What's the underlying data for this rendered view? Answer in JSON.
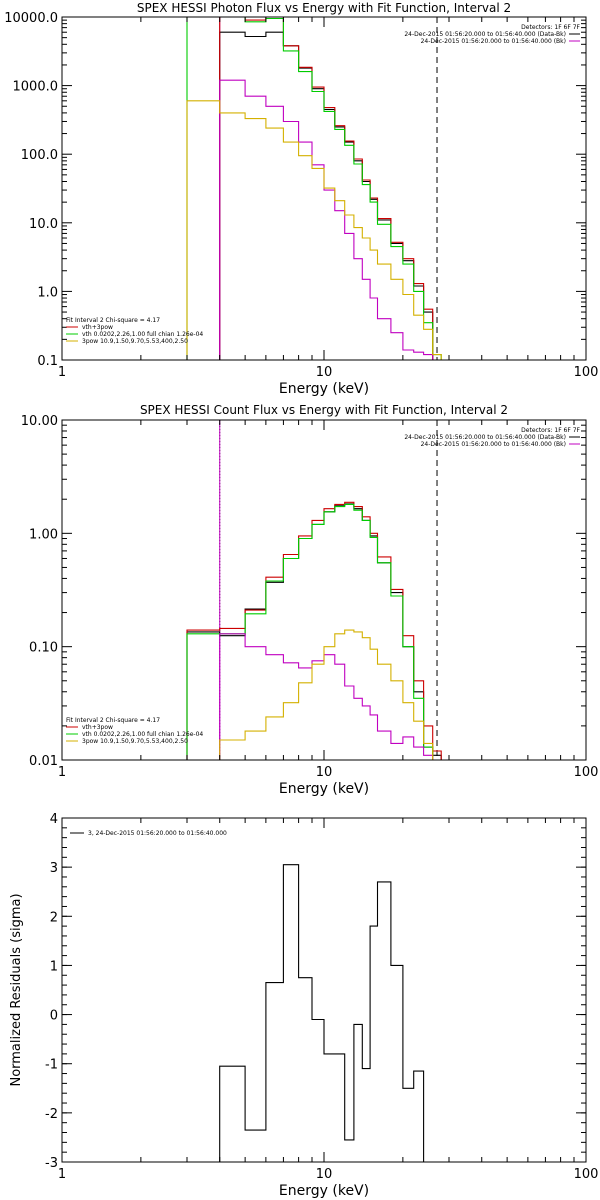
{
  "charts": [
    {
      "type": "line",
      "title": "SPEX HESSI Photon Flux vs Energy with Fit Function, Interval 2",
      "xlabel": "Energy (keV)",
      "ylabel": "",
      "xscale": "log",
      "yscale": "log",
      "xlim": [
        1,
        100
      ],
      "ylim": [
        0.1,
        10000
      ],
      "x_ticks": [
        "1",
        "10",
        "100"
      ],
      "y_ticks": [
        "0.1",
        "1.0",
        "10.0",
        "100.0",
        "1000.0",
        "10000.0"
      ],
      "vlines": [
        {
          "x": 4.0,
          "style": "solid",
          "color": "#c000c0"
        },
        {
          "x": 27.0,
          "style": "dashed",
          "color": "#000000"
        }
      ],
      "legend_top_right": [
        "Detectors: 1F 6F 7F",
        "24-Dec-2015 01:56:20.000 to 01:56:40.000 (Data-Bk)",
        "24-Dec-2015 01:56:20.000 to 01:56:40.000 (Bk)"
      ],
      "legend_bottom_left": [
        "Fit Interval 2   Chi-square = 4.17",
        "vth+3pow",
        "vth 0.0202,2.26,1.00  full chian 1.26e-04",
        "3pow 10.9,1.50,9.70,5.53,400,2.50"
      ],
      "legend_colors": [
        "#cc0000",
        "#00cc00",
        "#d4b000"
      ],
      "series": [
        {
          "name": "Data-Bk",
          "color": "#000000",
          "edges": [
            4.0,
            5.0,
            6.0,
            7.0,
            8.0,
            9.0,
            10.0,
            11.0,
            12.0,
            13.0,
            14.0,
            15.0,
            16.0,
            18.0,
            20.0,
            22.0,
            24.0,
            26.0
          ],
          "values": [
            6000,
            5200,
            6000,
            3800,
            1800,
            900,
            450,
            250,
            150,
            80,
            40,
            22,
            11,
            5,
            2.8,
            1.2,
            0.5
          ]
        },
        {
          "name": "vth+3pow",
          "color": "#cc0000",
          "edges": [
            4.0,
            5.0,
            6.0,
            7.0,
            8.0,
            9.0,
            10.0,
            11.0,
            12.0,
            13.0,
            14.0,
            15.0,
            16.0,
            18.0,
            20.0,
            22.0,
            24.0,
            26.0
          ],
          "values": [
            10000,
            9000,
            10000,
            3800,
            1850,
            950,
            480,
            260,
            155,
            85,
            42,
            23,
            11.5,
            5.2,
            3.0,
            1.3,
            0.55
          ]
        },
        {
          "name": "vth",
          "color": "#00cc00",
          "edges": [
            3.0,
            4.0,
            5.0,
            6.0,
            7.0,
            8.0,
            9.0,
            10.0,
            11.0,
            12.0,
            13.0,
            14.0,
            15.0,
            16.0,
            18.0,
            20.0,
            22.0,
            24.0,
            26.0,
            28.0
          ],
          "values": [
            10000,
            10000,
            8500,
            9500,
            3200,
            1600,
            820,
            420,
            230,
            135,
            72,
            36,
            20,
            9.5,
            4.5,
            2.5,
            1.0,
            0.35,
            0.12
          ]
        },
        {
          "name": "Bk",
          "color": "#c000c0",
          "edges": [
            4.0,
            5.0,
            6.0,
            7.0,
            8.0,
            9.0,
            10.0,
            11.0,
            12.0,
            13.0,
            14.0,
            15.0,
            16.0,
            18.0,
            20.0,
            22.0,
            24.0,
            26.0
          ],
          "values": [
            1200,
            700,
            500,
            300,
            150,
            70,
            30,
            15,
            7,
            3,
            1.5,
            0.8,
            0.4,
            0.25,
            0.14,
            0.13,
            0.12
          ]
        },
        {
          "name": "3pow",
          "color": "#d4b000",
          "edges": [
            3.0,
            4.0,
            5.0,
            6.0,
            7.0,
            8.0,
            9.0,
            10.0,
            11.0,
            12.0,
            13.0,
            14.0,
            15.0,
            16.0,
            18.0,
            20.0,
            22.0,
            24.0,
            26.0,
            28.0
          ],
          "values": [
            600,
            400,
            330,
            240,
            150,
            95,
            62,
            32,
            21,
            13,
            8.5,
            6,
            4,
            2.5,
            1.5,
            0.9,
            0.45,
            0.28,
            0.12
          ]
        }
      ]
    },
    {
      "type": "line",
      "title": "SPEX HESSI Count Flux vs Energy with Fit Function, Interval 2",
      "xlabel": "Energy (keV)",
      "ylabel": "",
      "xscale": "log",
      "yscale": "log",
      "xlim": [
        1,
        100
      ],
      "ylim": [
        0.01,
        10
      ],
      "x_ticks": [
        "1",
        "10",
        "100"
      ],
      "y_ticks": [
        "0.01",
        "0.10",
        "1.00",
        "10.00"
      ],
      "vlines": [
        {
          "x": 4.0,
          "style": "dotted",
          "color": "#000000"
        },
        {
          "x": 4.0,
          "style": "solid",
          "color": "#c000c0"
        },
        {
          "x": 27.0,
          "style": "dashed",
          "color": "#000000"
        }
      ],
      "legend_top_right": [
        "Detectors: 1F 6F 7F",
        "24-Dec-2015 01:56:20.000 to 01:56:40.000 (Data-Bk)",
        "24-Dec-2015 01:56:20.000 to 01:56:40.000 (Bk)"
      ],
      "legend_bottom_left": [
        "Fit Interval 2   Chi-square = 4.17",
        "vth+3pow",
        "vth 0.0202,2.26,1.00  full chian 1.26e-04",
        "3pow 10.9,1.50,9.70,5.53,400,2.50"
      ],
      "legend_colors": [
        "#cc0000",
        "#00cc00",
        "#d4b000"
      ],
      "series": [
        {
          "name": "Data-Bk",
          "color": "#000000",
          "edges": [
            3.0,
            4.0,
            5.0,
            6.0,
            7.0,
            8.0,
            9.0,
            10.0,
            11.0,
            12.0,
            13.0,
            14.0,
            15.0,
            16.0,
            18.0,
            20.0,
            22.0,
            24.0,
            26.0,
            28.0
          ],
          "values": [
            0.135,
            0.125,
            0.215,
            0.37,
            0.6,
            0.9,
            1.2,
            1.55,
            1.75,
            1.82,
            1.65,
            1.3,
            0.95,
            0.55,
            0.3,
            0.1,
            0.04,
            0.013,
            0.011
          ]
        },
        {
          "name": "vth+3pow",
          "color": "#cc0000",
          "edges": [
            3.0,
            4.0,
            5.0,
            6.0,
            7.0,
            8.0,
            9.0,
            10.0,
            11.0,
            12.0,
            13.0,
            14.0,
            15.0,
            16.0,
            18.0,
            20.0,
            22.0,
            24.0,
            26.0,
            28.0
          ],
          "values": [
            0.14,
            0.145,
            0.21,
            0.41,
            0.65,
            0.95,
            1.3,
            1.65,
            1.8,
            1.88,
            1.72,
            1.4,
            1.0,
            0.62,
            0.32,
            0.125,
            0.05,
            0.02,
            0.012
          ]
        },
        {
          "name": "vth",
          "color": "#00cc00",
          "edges": [
            3.0,
            4.0,
            5.0,
            6.0,
            7.0,
            8.0,
            9.0,
            10.0,
            11.0,
            12.0,
            13.0,
            14.0,
            15.0,
            16.0,
            18.0,
            20.0,
            22.0,
            24.0,
            26.0,
            28.0
          ],
          "values": [
            0.13,
            0.13,
            0.195,
            0.38,
            0.6,
            0.9,
            1.2,
            1.55,
            1.72,
            1.8,
            1.6,
            1.3,
            0.92,
            0.55,
            0.28,
            0.1,
            0.035,
            0.013,
            0.01
          ]
        },
        {
          "name": "Bk",
          "color": "#c000c0",
          "edges": [
            4.0,
            5.0,
            6.0,
            7.0,
            8.0,
            9.0,
            10.0,
            11.0,
            12.0,
            13.0,
            14.0,
            15.0,
            16.0,
            18.0,
            20.0,
            22.0,
            24.0,
            26.0
          ],
          "values": [
            0.13,
            0.1,
            0.085,
            0.072,
            0.065,
            0.075,
            0.085,
            0.07,
            0.045,
            0.035,
            0.03,
            0.025,
            0.018,
            0.014,
            0.016,
            0.013,
            0.011
          ]
        },
        {
          "name": "3pow",
          "color": "#d4b000",
          "edges": [
            4.0,
            5.0,
            6.0,
            7.0,
            8.0,
            9.0,
            10.0,
            11.0,
            12.0,
            13.0,
            14.0,
            15.0,
            16.0,
            18.0,
            20.0,
            22.0,
            24.0,
            26.0
          ],
          "values": [
            0.015,
            0.018,
            0.024,
            0.032,
            0.048,
            0.07,
            0.1,
            0.13,
            0.14,
            0.135,
            0.12,
            0.095,
            0.07,
            0.05,
            0.032,
            0.022,
            0.014
          ]
        }
      ]
    },
    {
      "type": "line",
      "title": "",
      "xlabel": "Energy (keV)",
      "ylabel": "Normalized Residuals (sigma)",
      "xscale": "log",
      "yscale": "linear",
      "xlim": [
        1,
        100
      ],
      "ylim": [
        -3,
        4
      ],
      "x_ticks": [
        "1",
        "10",
        "100"
      ],
      "y_ticks": [
        "-3",
        "-2",
        "-1",
        "0",
        "1",
        "2",
        "3",
        "4"
      ],
      "legend_top_left": [
        "3, 24-Dec-2015 01:56:20.000 to 01:56:40.000"
      ],
      "series": [
        {
          "name": "3, 24-Dec-2015 01:56:20.000 to 01:56:40.000",
          "color": "#000000",
          "edges": [
            4.0,
            5.0,
            6.0,
            7.0,
            8.0,
            9.0,
            10.0,
            11.0,
            12.0,
            13.0,
            14.0,
            15.0,
            16.0,
            18.0,
            20.0,
            22.0,
            24.0,
            26.0
          ],
          "values": [
            -1.05,
            -2.35,
            0.65,
            3.05,
            0.75,
            -0.1,
            -0.8,
            -0.8,
            -2.55,
            -0.2,
            -1.1,
            1.8,
            2.7,
            1.0,
            -1.5,
            -1.15,
            -3.1
          ]
        }
      ]
    }
  ],
  "colors": {
    "background": "#ffffff",
    "axes": "#000000"
  }
}
